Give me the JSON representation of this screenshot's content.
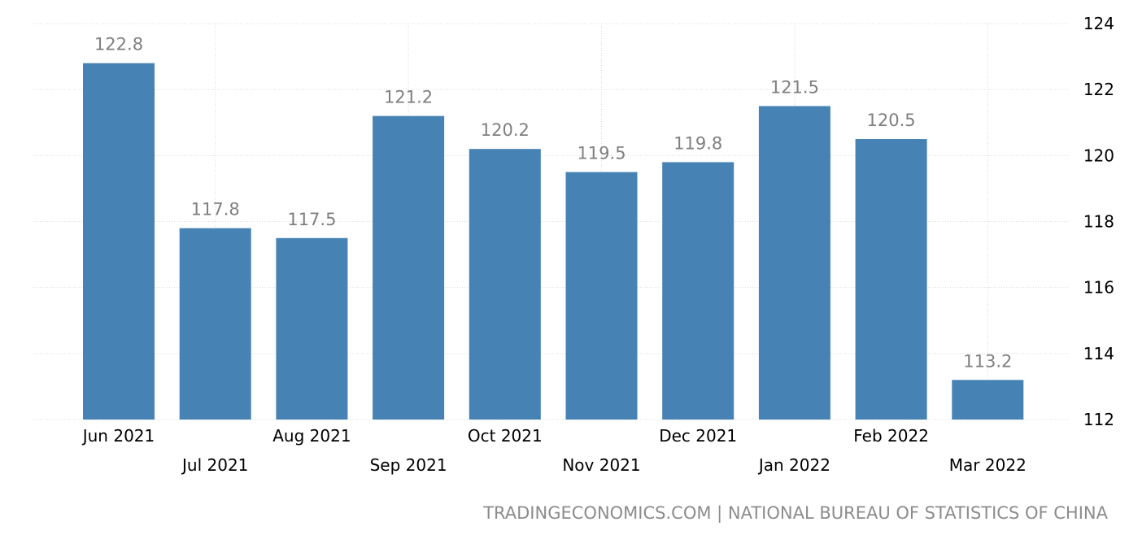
{
  "chart_data": {
    "type": "bar",
    "categories": [
      "Jun 2021",
      "Jul 2021",
      "Aug 2021",
      "Sep 2021",
      "Oct 2021",
      "Nov 2021",
      "Dec 2021",
      "Jan 2022",
      "Feb 2022",
      "Mar 2022"
    ],
    "values": [
      122.8,
      117.8,
      117.5,
      121.2,
      120.2,
      119.5,
      119.8,
      121.5,
      120.5,
      113.2
    ],
    "value_labels": [
      "122.8",
      "117.8",
      "117.5",
      "121.2",
      "120.2",
      "119.5",
      "119.8",
      "121.5",
      "120.5",
      "113.2"
    ],
    "ylim": [
      112,
      124
    ],
    "yticks": [
      "112",
      "114",
      "116",
      "118",
      "120",
      "122",
      "124"
    ],
    "y_axis_side": "right",
    "grid": true,
    "bar_color": "#4682b4",
    "label_color": "#7f7f7f"
  },
  "footer": {
    "source": "TRADINGECONOMICS.COM | NATIONAL BUREAU OF STATISTICS OF CHINA"
  }
}
